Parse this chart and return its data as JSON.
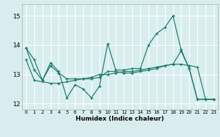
{
  "xlabel": "Humidex (Indice chaleur)",
  "background_color": "#d8eeee",
  "grid_color": "#ffffff",
  "line_color": "#1a7a6a",
  "xlim": [
    -0.5,
    23.5
  ],
  "ylim": [
    11.8,
    15.4
  ],
  "yticks": [
    12,
    13,
    14,
    15
  ],
  "xticks": [
    0,
    1,
    2,
    3,
    4,
    5,
    6,
    7,
    8,
    9,
    10,
    11,
    12,
    13,
    14,
    15,
    16,
    17,
    18,
    19,
    20,
    21,
    22,
    23
  ],
  "series": [
    [
      13.9,
      13.5,
      12.8,
      13.4,
      13.1,
      12.2,
      12.65,
      12.5,
      12.2,
      12.6,
      14.05,
      13.15,
      13.15,
      13.2,
      13.2,
      14.0,
      14.4,
      14.6,
      15.0,
      13.85,
      13.2,
      12.15,
      12.15,
      12.15
    ],
    [
      13.9,
      13.15,
      12.8,
      13.3,
      13.05,
      12.85,
      12.85,
      12.85,
      12.85,
      12.9,
      13.1,
      13.1,
      13.05,
      13.05,
      13.1,
      13.15,
      13.2,
      13.3,
      13.35,
      13.8,
      13.2,
      12.15,
      12.15,
      12.15
    ],
    [
      13.5,
      12.8,
      12.75,
      12.7,
      12.7,
      12.75,
      12.8,
      12.85,
      12.9,
      13.0,
      13.0,
      13.05,
      13.1,
      13.1,
      13.15,
      13.2,
      13.25,
      13.3,
      13.35,
      13.35,
      13.3,
      13.25,
      12.15,
      12.15
    ]
  ]
}
